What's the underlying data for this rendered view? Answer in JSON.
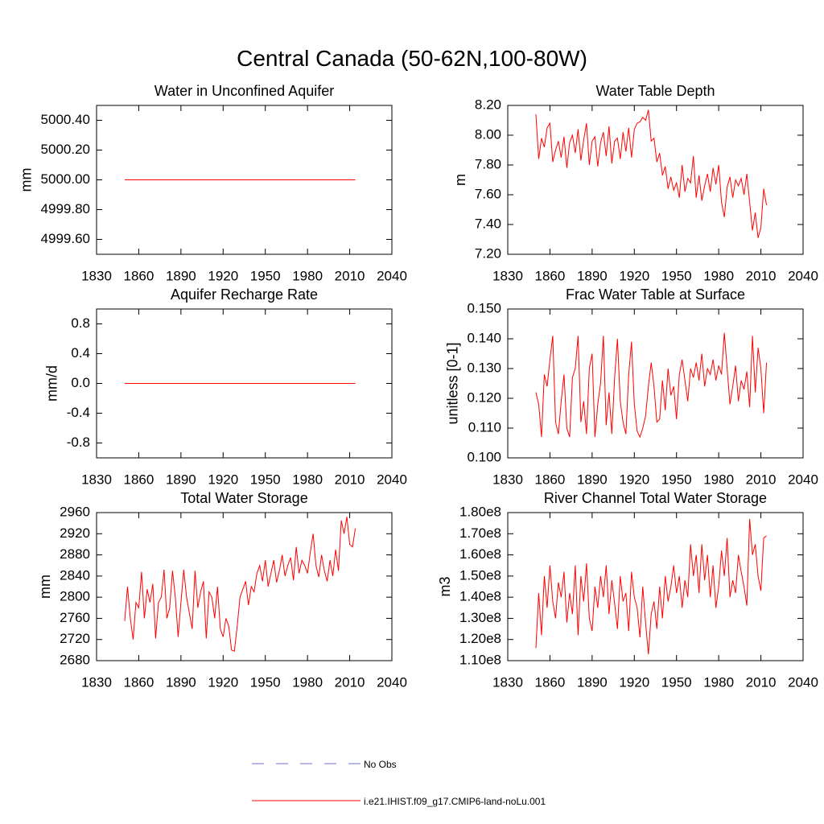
{
  "title": "Central Canada (50-62N,100-80W)",
  "legend": [
    {
      "name": "No Obs",
      "color": "#6f6fcf",
      "dashed": true
    },
    {
      "name": "i.e21.IHIST.f09_g17.CMIP6-land-noLu.001",
      "color": "#ff0000",
      "dashed": false
    }
  ],
  "chart_data": [
    {
      "type": "line",
      "title": "Water in Unconfined Aquifer",
      "y_label": "mm",
      "color": "#ff0000",
      "x": [
        1850,
        2014
      ],
      "values": [
        5000,
        5000
      ],
      "xlim": [
        1830,
        2040
      ],
      "xticks": [
        1830,
        1860,
        1890,
        1920,
        1950,
        1980,
        2010,
        2040
      ],
      "ylim": [
        4999.5,
        5000.5
      ],
      "yticks": [
        {
          "value": 4999.6,
          "label": "4999.60"
        },
        {
          "value": 4999.8,
          "label": "4999.80"
        },
        {
          "value": 5000,
          "label": "5000.00"
        },
        {
          "value": 5000.2,
          "label": "5000.20"
        },
        {
          "value": 5000.4,
          "label": "5000.40"
        }
      ]
    },
    {
      "type": "line",
      "title": "Water Table Depth",
      "y_label": "m",
      "color": "#ff0000",
      "x": [
        1850,
        1852,
        1854,
        1856,
        1858,
        1860,
        1862,
        1864,
        1866,
        1868,
        1870,
        1872,
        1874,
        1876,
        1878,
        1880,
        1882,
        1884,
        1886,
        1888,
        1890,
        1892,
        1894,
        1896,
        1898,
        1900,
        1902,
        1904,
        1906,
        1908,
        1910,
        1912,
        1914,
        1916,
        1918,
        1920,
        1922,
        1924,
        1926,
        1928,
        1930,
        1932,
        1934,
        1936,
        1938,
        1940,
        1942,
        1944,
        1946,
        1948,
        1950,
        1952,
        1954,
        1956,
        1958,
        1960,
        1962,
        1964,
        1966,
        1968,
        1970,
        1972,
        1974,
        1976,
        1978,
        1980,
        1982,
        1984,
        1986,
        1988,
        1990,
        1992,
        1994,
        1996,
        1998,
        2000,
        2002,
        2004,
        2006,
        2008,
        2010,
        2012,
        2014
      ],
      "values": [
        8.14,
        7.84,
        7.98,
        7.92,
        8.05,
        8.08,
        7.82,
        7.9,
        7.96,
        7.85,
        7.99,
        7.78,
        7.95,
        8.0,
        7.88,
        8.04,
        7.83,
        7.97,
        8.08,
        7.8,
        7.96,
        7.99,
        7.79,
        7.95,
        8.02,
        7.86,
        8.06,
        7.81,
        7.96,
        7.98,
        7.84,
        8.02,
        7.89,
        8.05,
        7.85,
        8.04,
        8.08,
        8.09,
        8.12,
        8.1,
        8.17,
        7.96,
        7.98,
        7.82,
        7.88,
        7.73,
        7.79,
        7.64,
        7.72,
        7.63,
        7.68,
        7.58,
        7.8,
        7.62,
        7.71,
        7.68,
        7.86,
        7.58,
        7.73,
        7.56,
        7.66,
        7.74,
        7.62,
        7.78,
        7.67,
        7.8,
        7.55,
        7.45,
        7.65,
        7.72,
        7.58,
        7.7,
        7.66,
        7.71,
        7.6,
        7.74,
        7.55,
        7.36,
        7.48,
        7.31,
        7.38,
        7.64,
        7.53
      ],
      "xlim": [
        1830,
        2040
      ],
      "xticks": [
        1830,
        1860,
        1890,
        1920,
        1950,
        1980,
        2010,
        2040
      ],
      "ylim": [
        7.2,
        8.2
      ],
      "yticks": [
        {
          "value": 7.2,
          "label": "7.20"
        },
        {
          "value": 7.4,
          "label": "7.40"
        },
        {
          "value": 7.6,
          "label": "7.60"
        },
        {
          "value": 7.8,
          "label": "7.80"
        },
        {
          "value": 8,
          "label": "8.00"
        },
        {
          "value": 8.2,
          "label": "8.20"
        }
      ]
    },
    {
      "type": "line",
      "title": "Aquifer Recharge Rate",
      "y_label": "mm/d",
      "color": "#ff0000",
      "x": [
        1850,
        2014
      ],
      "values": [
        0,
        0
      ],
      "xlim": [
        1830,
        2040
      ],
      "xticks": [
        1830,
        1860,
        1890,
        1920,
        1950,
        1980,
        2010,
        2040
      ],
      "ylim": [
        -1,
        1
      ],
      "yticks": [
        -0.8,
        -0.4,
        {
          "value": 0,
          "label": "0.0"
        },
        0.4,
        0.8
      ]
    },
    {
      "type": "line",
      "title": "Frac Water Table at Surface",
      "y_label": "unitless [0-1]",
      "color": "#ff0000",
      "x": [
        1850,
        1852,
        1854,
        1856,
        1858,
        1860,
        1862,
        1864,
        1866,
        1868,
        1870,
        1872,
        1874,
        1876,
        1878,
        1880,
        1882,
        1884,
        1886,
        1888,
        1890,
        1892,
        1894,
        1896,
        1898,
        1900,
        1902,
        1904,
        1906,
        1908,
        1910,
        1912,
        1914,
        1916,
        1918,
        1920,
        1922,
        1924,
        1926,
        1928,
        1930,
        1932,
        1934,
        1936,
        1938,
        1940,
        1942,
        1944,
        1946,
        1948,
        1950,
        1952,
        1954,
        1956,
        1958,
        1960,
        1962,
        1964,
        1966,
        1968,
        1970,
        1972,
        1974,
        1976,
        1978,
        1980,
        1982,
        1984,
        1986,
        1988,
        1990,
        1992,
        1994,
        1996,
        1998,
        2000,
        2002,
        2004,
        2006,
        2008,
        2010,
        2012,
        2014
      ],
      "values": [
        0.122,
        0.118,
        0.107,
        0.128,
        0.124,
        0.133,
        0.141,
        0.112,
        0.108,
        0.119,
        0.128,
        0.11,
        0.107,
        0.127,
        0.13,
        0.141,
        0.112,
        0.119,
        0.108,
        0.13,
        0.135,
        0.107,
        0.118,
        0.125,
        0.141,
        0.111,
        0.122,
        0.108,
        0.127,
        0.14,
        0.119,
        0.112,
        0.108,
        0.128,
        0.139,
        0.118,
        0.109,
        0.107,
        0.11,
        0.114,
        0.124,
        0.132,
        0.124,
        0.112,
        0.113,
        0.126,
        0.116,
        0.13,
        0.121,
        0.124,
        0.113,
        0.128,
        0.133,
        0.126,
        0.119,
        0.13,
        0.127,
        0.132,
        0.126,
        0.135,
        0.124,
        0.13,
        0.128,
        0.133,
        0.126,
        0.131,
        0.128,
        0.142,
        0.13,
        0.118,
        0.124,
        0.131,
        0.119,
        0.126,
        0.123,
        0.129,
        0.117,
        0.141,
        0.122,
        0.137,
        0.13,
        0.115,
        0.132
      ],
      "xlim": [
        1830,
        2040
      ],
      "xticks": [
        1830,
        1860,
        1890,
        1920,
        1950,
        1980,
        2010,
        2040
      ],
      "ylim": [
        0.1,
        0.15
      ],
      "yticks": [
        {
          "value": 0.1,
          "label": "0.100"
        },
        {
          "value": 0.11,
          "label": "0.110"
        },
        {
          "value": 0.12,
          "label": "0.120"
        },
        {
          "value": 0.13,
          "label": "0.130"
        },
        {
          "value": 0.14,
          "label": "0.140"
        },
        {
          "value": 0.15,
          "label": "0.150"
        }
      ]
    },
    {
      "type": "line",
      "title": "Total Water Storage",
      "y_label": "mm",
      "color": "#ff0000",
      "x": [
        1850,
        1852,
        1854,
        1856,
        1858,
        1860,
        1862,
        1864,
        1866,
        1868,
        1870,
        1872,
        1874,
        1876,
        1878,
        1880,
        1882,
        1884,
        1886,
        1888,
        1890,
        1892,
        1894,
        1896,
        1898,
        1900,
        1902,
        1904,
        1906,
        1908,
        1910,
        1912,
        1914,
        1916,
        1918,
        1920,
        1922,
        1924,
        1926,
        1928,
        1930,
        1932,
        1934,
        1936,
        1938,
        1940,
        1942,
        1944,
        1946,
        1948,
        1950,
        1952,
        1954,
        1956,
        1958,
        1960,
        1962,
        1964,
        1966,
        1968,
        1970,
        1972,
        1974,
        1976,
        1978,
        1980,
        1982,
        1984,
        1986,
        1988,
        1990,
        1992,
        1994,
        1996,
        1998,
        2000,
        2002,
        2004,
        2006,
        2008,
        2010,
        2012,
        2014
      ],
      "values": [
        2755,
        2820,
        2760,
        2720,
        2790,
        2780,
        2848,
        2760,
        2815,
        2790,
        2825,
        2722,
        2790,
        2800,
        2852,
        2760,
        2780,
        2850,
        2800,
        2725,
        2790,
        2852,
        2800,
        2770,
        2740,
        2850,
        2780,
        2810,
        2830,
        2722,
        2810,
        2800,
        2760,
        2820,
        2740,
        2725,
        2760,
        2745,
        2700,
        2698,
        2745,
        2800,
        2815,
        2830,
        2785,
        2820,
        2810,
        2845,
        2860,
        2830,
        2870,
        2820,
        2845,
        2870,
        2828,
        2850,
        2880,
        2840,
        2860,
        2875,
        2832,
        2895,
        2845,
        2870,
        2860,
        2845,
        2885,
        2920,
        2860,
        2838,
        2880,
        2850,
        2830,
        2870,
        2840,
        2890,
        2850,
        2945,
        2920,
        2952,
        2900,
        2895,
        2930
      ],
      "xlim": [
        1830,
        2040
      ],
      "xticks": [
        1830,
        1860,
        1890,
        1920,
        1950,
        1980,
        2010,
        2040
      ],
      "ylim": [
        2680,
        2960
      ],
      "yticks": [
        2680,
        2720,
        2760,
        2800,
        2840,
        2880,
        2920,
        2960
      ]
    },
    {
      "type": "line",
      "title": "River Channel Total Water Storage",
      "y_label": "m3",
      "color": "#ff0000",
      "x": [
        1850,
        1852,
        1854,
        1856,
        1858,
        1860,
        1862,
        1864,
        1866,
        1868,
        1870,
        1872,
        1874,
        1876,
        1878,
        1880,
        1882,
        1884,
        1886,
        1888,
        1890,
        1892,
        1894,
        1896,
        1898,
        1900,
        1902,
        1904,
        1906,
        1908,
        1910,
        1912,
        1914,
        1916,
        1918,
        1920,
        1922,
        1924,
        1926,
        1928,
        1930,
        1932,
        1934,
        1936,
        1938,
        1940,
        1942,
        1944,
        1946,
        1948,
        1950,
        1952,
        1954,
        1956,
        1958,
        1960,
        1962,
        1964,
        1966,
        1968,
        1970,
        1972,
        1974,
        1976,
        1978,
        1980,
        1982,
        1984,
        1986,
        1988,
        1990,
        1992,
        1994,
        1996,
        1998,
        2000,
        2002,
        2004,
        2006,
        2008,
        2010,
        2012,
        2014
      ],
      "values": [
        116000000,
        142000000,
        122000000,
        150000000,
        135000000,
        155000000,
        138000000,
        130000000,
        147000000,
        140000000,
        152000000,
        128000000,
        142000000,
        132000000,
        155000000,
        122000000,
        150000000,
        138000000,
        156000000,
        130000000,
        124000000,
        145000000,
        135000000,
        150000000,
        140000000,
        155000000,
        132000000,
        148000000,
        137000000,
        125000000,
        150000000,
        138000000,
        142000000,
        124000000,
        152000000,
        140000000,
        135000000,
        121000000,
        145000000,
        128000000,
        113000000,
        132000000,
        138000000,
        125000000,
        145000000,
        130000000,
        150000000,
        138000000,
        145000000,
        155000000,
        142000000,
        150000000,
        135000000,
        148000000,
        140000000,
        165000000,
        150000000,
        160000000,
        142000000,
        165000000,
        148000000,
        160000000,
        140000000,
        155000000,
        135000000,
        145000000,
        162000000,
        150000000,
        168000000,
        140000000,
        148000000,
        142000000,
        160000000,
        152000000,
        145000000,
        136000000,
        177000000,
        160000000,
        165000000,
        150000000,
        143000000,
        168000000,
        169000000
      ],
      "xlim": [
        1830,
        2040
      ],
      "xticks": [
        1830,
        1860,
        1890,
        1920,
        1950,
        1980,
        2010,
        2040
      ],
      "ylim": [
        110000000,
        180000000
      ],
      "yticks": [
        {
          "value": 110000000,
          "label": "1.10e8"
        },
        {
          "value": 120000000,
          "label": "1.20e8"
        },
        {
          "value": 130000000,
          "label": "1.30e8"
        },
        {
          "value": 140000000,
          "label": "1.40e8"
        },
        {
          "value": 150000000,
          "label": "1.50e8"
        },
        {
          "value": 160000000,
          "label": "1.60e8"
        },
        {
          "value": 170000000,
          "label": "1.70e8"
        },
        {
          "value": 180000000,
          "label": "1.80e8"
        }
      ]
    }
  ]
}
